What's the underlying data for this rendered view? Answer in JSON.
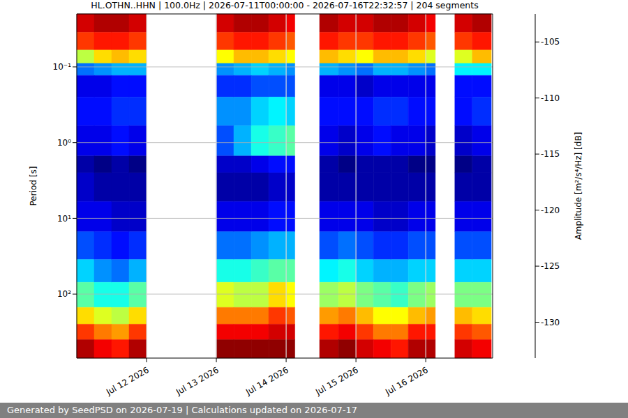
{
  "chart_data": {
    "type": "heatmap",
    "title": "HL.OTHN..HHN | 100.0Hz | 2026-07-11T00:00:00 - 2026-07-16T22:32:57 | 204 segments",
    "ylabel": "Period [s]",
    "colorbar_label": "Amplitude [m²/s⁴/Hz] [dB]",
    "footer": "Generated by SeedPSD on 2026-07-19 | Calculations updated on 2026-07-17",
    "log": "y",
    "grid": true,
    "xlim": [
      0,
      143
    ],
    "xticks": [
      {
        "value": 24,
        "label": "Jul 12 2026"
      },
      {
        "value": 48,
        "label": "Jul 13 2026"
      },
      {
        "value": 72,
        "label": "Jul 14 2026"
      },
      {
        "value": 96,
        "label": "Jul 15 2026"
      },
      {
        "value": 120,
        "label": "Jul 16 2026"
      }
    ],
    "ylim": [
      0.02,
      700
    ],
    "yticks": [
      {
        "value": 0.1,
        "label": "10⁻¹"
      },
      {
        "value": 1,
        "label": "10⁰"
      },
      {
        "value": 10,
        "label": "10¹"
      },
      {
        "value": 100,
        "label": "10²"
      }
    ],
    "period_bins": [
      0.02,
      0.035,
      0.06,
      0.09,
      0.13,
      0.25,
      0.6,
      1.5,
      2.5,
      6,
      15,
      35,
      70,
      150,
      250,
      400,
      700
    ],
    "columns": [
      {
        "start": 0,
        "end": 6,
        "values": [
          -105,
          -108,
          -116,
          -126,
          -130,
          -129,
          -130,
          -132,
          -131,
          -130,
          -127,
          -123,
          -119,
          -113,
          -108,
          -104
        ]
      },
      {
        "start": 6,
        "end": 12,
        "values": [
          -104,
          -107,
          -113,
          -125,
          -130,
          -129,
          -130,
          -133,
          -132,
          -130,
          -128,
          -125,
          -121,
          -115,
          -110,
          -106
        ]
      },
      {
        "start": 12,
        "end": 18,
        "values": [
          -104,
          -107,
          -112,
          -124,
          -129,
          -128,
          -129,
          -132,
          -132,
          -131,
          -129,
          -126,
          -121,
          -116,
          -111,
          -107
        ]
      },
      {
        "start": 18,
        "end": 24,
        "values": [
          -105,
          -108,
          -113,
          -124,
          -129,
          -128,
          -130,
          -133,
          -132,
          -131,
          -128,
          -124,
          -119,
          -113,
          -108,
          -104
        ]
      },
      {
        "start": 48,
        "end": 54,
        "values": [
          -105,
          -108,
          -114,
          -125,
          -128,
          -125,
          -127,
          -131,
          -132,
          -130,
          -126,
          -121,
          -115,
          -110,
          -106,
          -103
        ]
      },
      {
        "start": 54,
        "end": 60,
        "values": [
          -104,
          -107,
          -112,
          -124,
          -128,
          -125,
          -124,
          -131,
          -132,
          -130,
          -126,
          -121,
          -116,
          -110,
          -106,
          -103
        ]
      },
      {
        "start": 60,
        "end": 66,
        "values": [
          -104,
          -107,
          -112,
          -123,
          -127,
          -123,
          -121,
          -130,
          -132,
          -130,
          -125,
          -120,
          -116,
          -110,
          -106,
          -103
        ]
      },
      {
        "start": 66,
        "end": 72,
        "values": [
          -105,
          -108,
          -113,
          -124,
          -127,
          -122,
          -120,
          -129,
          -131,
          -129,
          -124,
          -119,
          -113,
          -108,
          -105,
          -103
        ]
      },
      {
        "start": 72,
        "end": 75,
        "values": [
          -106,
          -109,
          -114,
          -125,
          -127,
          -123,
          -119,
          -129,
          -131,
          -129,
          -124,
          -119,
          -114,
          -109,
          -105,
          -103
        ]
      },
      {
        "start": 83.5,
        "end": 90,
        "values": [
          -104,
          -107,
          -112,
          -124,
          -130,
          -129,
          -130,
          -132,
          -132,
          -130,
          -127,
          -122,
          -117,
          -111,
          -107,
          -104
        ]
      },
      {
        "start": 90,
        "end": 96,
        "values": [
          -105,
          -108,
          -113,
          -125,
          -130,
          -129,
          -131,
          -133,
          -132,
          -130,
          -126,
          -121,
          -116,
          -110,
          -106,
          -103
        ]
      },
      {
        "start": 96,
        "end": 102,
        "values": [
          -105,
          -108,
          -114,
          -126,
          -131,
          -129,
          -130,
          -132,
          -132,
          -130,
          -127,
          -123,
          -118,
          -112,
          -108,
          -105
        ]
      },
      {
        "start": 102,
        "end": 108,
        "values": [
          -104,
          -107,
          -112,
          -124,
          -130,
          -128,
          -129,
          -132,
          -132,
          -131,
          -128,
          -124,
          -119,
          -114,
          -110,
          -106
        ]
      },
      {
        "start": 108,
        "end": 114,
        "values": [
          -104,
          -107,
          -112,
          -124,
          -130,
          -128,
          -130,
          -132,
          -132,
          -131,
          -128,
          -124,
          -120,
          -114,
          -110,
          -107
        ]
      },
      {
        "start": 114,
        "end": 120,
        "values": [
          -105,
          -108,
          -113,
          -125,
          -130,
          -129,
          -130,
          -133,
          -132,
          -130,
          -127,
          -123,
          -118,
          -112,
          -107,
          -104
        ]
      },
      {
        "start": 120,
        "end": 123.3,
        "values": [
          -106,
          -109,
          -115,
          -126,
          -130,
          -129,
          -131,
          -133,
          -132,
          -130,
          -127,
          -123,
          -117,
          -111,
          -107,
          -104
        ]
      },
      {
        "start": 130,
        "end": 136,
        "values": [
          -105,
          -108,
          -115,
          -122,
          -129,
          -129,
          -131,
          -133,
          -132,
          -130,
          -127,
          -123,
          -118,
          -112,
          -108,
          -105
        ]
      },
      {
        "start": 136,
        "end": 142.55,
        "values": [
          -104,
          -107,
          -112,
          -122,
          -129,
          -128,
          -130,
          -132,
          -132,
          -130,
          -127,
          -123,
          -118,
          -113,
          -109,
          -106
        ]
      }
    ],
    "colorbar_range": [
      -133.2,
      -102.5
    ],
    "colorbar_ticks": [
      -105,
      -110,
      -115,
      -120,
      -125,
      -130
    ]
  }
}
